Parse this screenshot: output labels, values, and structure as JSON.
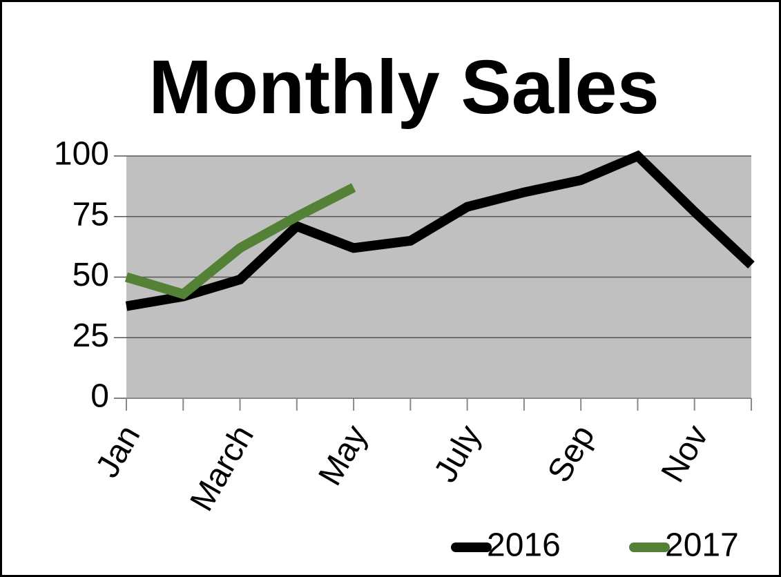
{
  "chart_data": {
    "type": "line",
    "title": "Monthly Sales",
    "categories": [
      "Jan",
      null,
      "March",
      null,
      "May",
      null,
      "July",
      null,
      "Sep",
      null,
      "Nov",
      null
    ],
    "series": [
      {
        "name": "2016",
        "color": "#000000",
        "values": [
          38,
          42,
          49,
          71,
          62,
          65,
          79,
          85,
          90,
          100,
          77,
          55
        ]
      },
      {
        "name": "2017",
        "color": "#538135",
        "values": [
          50,
          43,
          62,
          75,
          87,
          null,
          null,
          null,
          null,
          null,
          null,
          null
        ]
      }
    ],
    "ylim": [
      0,
      100
    ],
    "yticks": [
      0,
      25,
      50,
      75,
      100
    ],
    "grid": true,
    "legend": "bottom-right"
  }
}
